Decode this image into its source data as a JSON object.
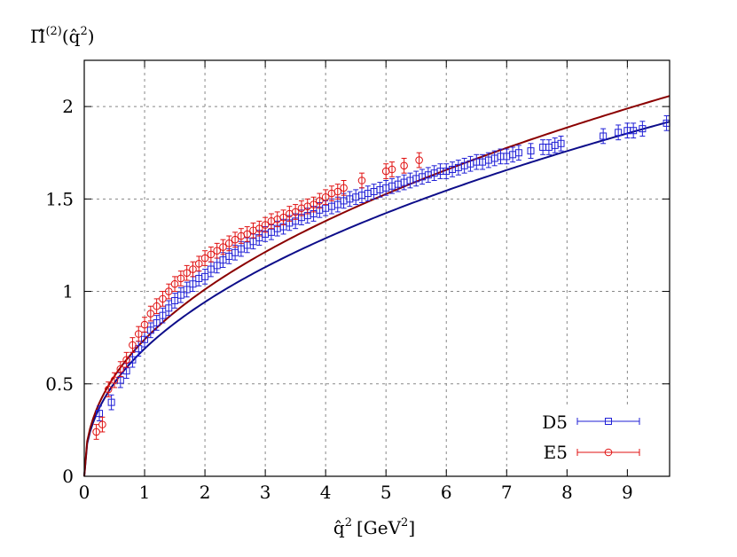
{
  "chart_data": {
    "type": "scatter",
    "title": "",
    "ylabel_main": "Π̂",
    "ylabel_sup": "(2)",
    "ylabel_arg_open": "(q̂",
    "ylabel_arg_sup": "2",
    "ylabel_arg_close": ")",
    "xlabel_main": "q̂",
    "xlabel_sup": "2",
    "xlabel_unit_open": "[GeV",
    "xlabel_unit_sup": "2",
    "xlabel_unit_close": "]",
    "xlim": [
      0,
      9.7
    ],
    "ylim": [
      0,
      2.25
    ],
    "grid": true,
    "legend_position": "bottom-right",
    "x_ticks": [
      0,
      1,
      2,
      3,
      4,
      5,
      6,
      7,
      8,
      9
    ],
    "x_tick_labels": [
      "0",
      "1",
      "2",
      "3",
      "4",
      "5",
      "6",
      "7",
      "8",
      "9"
    ],
    "y_ticks": [
      0,
      0.5,
      1,
      1.5,
      2
    ],
    "y_tick_labels": [
      "0",
      "0.5",
      "1",
      "1.5",
      "2"
    ],
    "series": [
      {
        "name": "D5",
        "marker": "square",
        "color": "#1f1fd6",
        "fit_color": "#0d0d8a",
        "x": [
          0.25,
          0.45,
          0.6,
          0.7,
          0.8,
          0.9,
          1.0,
          1.1,
          1.2,
          1.3,
          1.4,
          1.5,
          1.6,
          1.7,
          1.8,
          1.9,
          2.0,
          2.1,
          2.2,
          2.3,
          2.4,
          2.5,
          2.6,
          2.7,
          2.8,
          2.9,
          3.0,
          3.1,
          3.2,
          3.3,
          3.4,
          3.5,
          3.6,
          3.7,
          3.8,
          3.9,
          4.0,
          4.1,
          4.2,
          4.3,
          4.4,
          4.5,
          4.6,
          4.7,
          4.8,
          4.9,
          5.0,
          5.1,
          5.2,
          5.3,
          5.4,
          5.5,
          5.6,
          5.7,
          5.8,
          5.9,
          6.0,
          6.1,
          6.2,
          6.3,
          6.4,
          6.5,
          6.6,
          6.7,
          6.8,
          6.9,
          7.0,
          7.1,
          7.2,
          7.4,
          7.6,
          7.7,
          7.8,
          7.9,
          8.6,
          8.85,
          9.0,
          9.1,
          9.25,
          9.65
        ],
        "y": [
          0.34,
          0.4,
          0.52,
          0.57,
          0.63,
          0.69,
          0.74,
          0.79,
          0.83,
          0.87,
          0.91,
          0.95,
          0.98,
          1.01,
          1.04,
          1.07,
          1.08,
          1.12,
          1.14,
          1.17,
          1.19,
          1.21,
          1.23,
          1.25,
          1.27,
          1.29,
          1.31,
          1.32,
          1.34,
          1.35,
          1.37,
          1.38,
          1.4,
          1.41,
          1.42,
          1.44,
          1.45,
          1.46,
          1.47,
          1.49,
          1.5,
          1.51,
          1.52,
          1.53,
          1.54,
          1.55,
          1.56,
          1.57,
          1.58,
          1.59,
          1.6,
          1.61,
          1.62,
          1.63,
          1.64,
          1.65,
          1.65,
          1.66,
          1.67,
          1.68,
          1.69,
          1.7,
          1.7,
          1.71,
          1.72,
          1.73,
          1.73,
          1.74,
          1.75,
          1.76,
          1.78,
          1.78,
          1.79,
          1.8,
          1.84,
          1.86,
          1.87,
          1.87,
          1.88,
          1.91
        ],
        "err": 0.04,
        "fit": {
          "a": 0.69,
          "p": 0.45
        }
      },
      {
        "name": "E5",
        "marker": "circle",
        "color": "#e01010",
        "fit_color": "#8b0000",
        "x": [
          0.2,
          0.3,
          0.4,
          0.5,
          0.6,
          0.7,
          0.8,
          0.9,
          1.0,
          1.1,
          1.2,
          1.3,
          1.4,
          1.5,
          1.6,
          1.7,
          1.8,
          1.9,
          2.0,
          2.1,
          2.2,
          2.3,
          2.4,
          2.5,
          2.6,
          2.7,
          2.8,
          2.9,
          3.0,
          3.1,
          3.2,
          3.3,
          3.4,
          3.5,
          3.6,
          3.7,
          3.8,
          3.9,
          4.0,
          4.1,
          4.2,
          4.3,
          4.6,
          5.0,
          5.1,
          5.3,
          5.55
        ],
        "y": [
          0.24,
          0.28,
          0.47,
          0.52,
          0.58,
          0.63,
          0.71,
          0.77,
          0.82,
          0.88,
          0.92,
          0.96,
          1.0,
          1.04,
          1.07,
          1.1,
          1.12,
          1.15,
          1.18,
          1.2,
          1.22,
          1.24,
          1.26,
          1.28,
          1.3,
          1.31,
          1.33,
          1.34,
          1.36,
          1.38,
          1.39,
          1.4,
          1.42,
          1.43,
          1.45,
          1.46,
          1.47,
          1.49,
          1.51,
          1.53,
          1.54,
          1.56,
          1.6,
          1.65,
          1.66,
          1.68,
          1.71
        ],
        "err": 0.04,
        "fit": {
          "a": 0.74,
          "p": 0.45
        }
      }
    ]
  }
}
